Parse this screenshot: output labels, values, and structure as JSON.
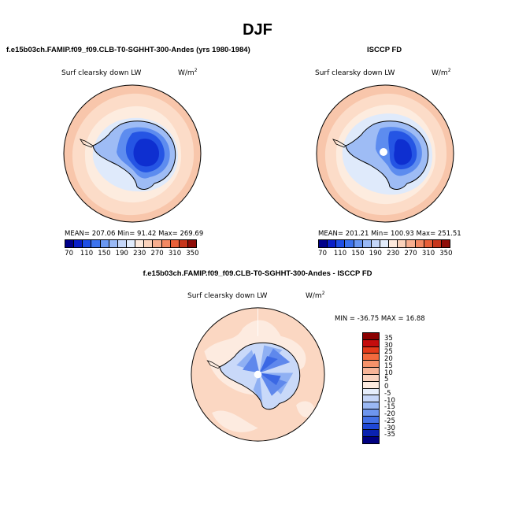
{
  "main_title": "DJF",
  "panels": {
    "model": {
      "title": "f.e15b03ch.FAMIP.f09_f09.CLB-T0-SGHHT-300-Andes (yrs 1980-1984)",
      "variable": "Surf clearsky down LW",
      "unit_base": "W/m",
      "unit_exp": "2",
      "stats": "MEAN= 207.06   Min=  91.42   Max= 269.69"
    },
    "obs": {
      "title": "ISCCP FD",
      "variable": "Surf clearsky down LW",
      "unit_base": "W/m",
      "unit_exp": "2",
      "stats": "MEAN= 201.21   Min= 100.93   Max= 251.51"
    },
    "diff": {
      "title": "f.e15b03ch.FAMIP.f09_f09.CLB-T0-SGHHT-300-Andes - ISCCP FD",
      "variable": "Surf clearsky down LW",
      "unit_base": "W/m",
      "unit_exp": "2",
      "stats": "MIN = -36.75 MAX =  16.88"
    }
  },
  "colorbars": {
    "abs": {
      "colors": [
        "#00008a",
        "#0a1fc8",
        "#1f4fe6",
        "#3c73ee",
        "#6a98f2",
        "#99b9f5",
        "#c4d6f8",
        "#e1ebfb",
        "#fde9dc",
        "#fbd2bb",
        "#f8ae8f",
        "#f38862",
        "#e85f38",
        "#c8361c",
        "#8f0d08"
      ],
      "tick_labels": [
        "70",
        "110",
        "150",
        "190",
        "230",
        "270",
        "310",
        "350"
      ]
    },
    "diff": {
      "colors": [
        "#8a0000",
        "#c40d0d",
        "#e43a1a",
        "#f26a3e",
        "#f5926a",
        "#f7b598",
        "#fad4c0",
        "#fdebe0",
        "#e6eefc",
        "#c6d6f8",
        "#9ab8f4",
        "#6e96ee",
        "#4471e6",
        "#1f48d6",
        "#0a22b0",
        "#000080"
      ],
      "tick_labels": [
        "35",
        "30",
        "25",
        "20",
        "15",
        "10",
        "5",
        "0",
        "-5",
        "-10",
        "-15",
        "-20",
        "-25",
        "-30",
        "-35"
      ]
    }
  },
  "map_colors": {
    "ocean_far": "#f8c6ab",
    "ocean_mid": "#fcdcc8",
    "ocean_near": "#fdecdf",
    "ice_edge": "#dfeafb",
    "land_outer": "#9ebcf5",
    "land_mid": "#5d8cef",
    "land_inner": "#2555e4",
    "land_core": "#0e2fd0",
    "diff_ocean": "#fbd7c2",
    "diff_ocean_light": "#fdebe0",
    "diff_land_a": "#c9d9f9",
    "diff_land_b": "#8fb0f3",
    "diff_land_c": "#5f88ec",
    "diff_land_d": "#3b68e4"
  }
}
